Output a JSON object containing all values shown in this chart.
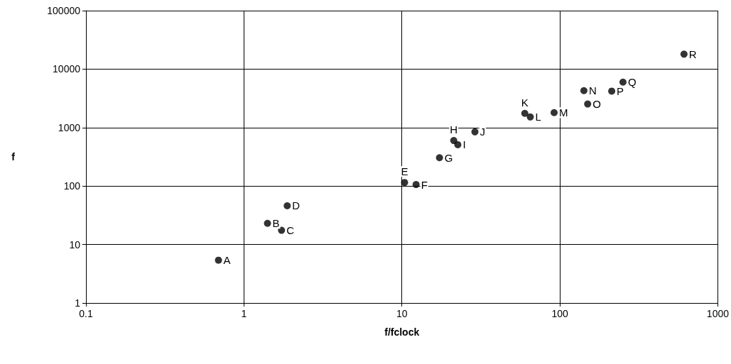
{
  "chart_data": {
    "type": "scatter",
    "xlabel": "f/fclock",
    "ylabel": "f",
    "log": "xy",
    "grid": true,
    "marker": "circle",
    "xlim": [
      0.1,
      1000
    ],
    "xticks": [
      0.1,
      1,
      10,
      100,
      1000
    ],
    "ylim": [
      1,
      100000
    ],
    "yticks": [
      1,
      10,
      100,
      1000,
      10000,
      100000
    ],
    "x": [
      0.69,
      1.41,
      1.73,
      1.88,
      10.4,
      12.3,
      17.3,
      21.3,
      22.6,
      29,
      60,
      65,
      92,
      142,
      150,
      213,
      251,
      611
    ],
    "series": [
      {
        "color": "#000000",
        "values": [
          5.4,
          23,
          17.5,
          46,
          115,
          106,
          305,
          600,
          510,
          845,
          1750,
          1520,
          1800,
          4280,
          2530,
          4200,
          5990,
          18000
        ]
      }
    ],
    "annotations": [
      {
        "text": "A",
        "x": 0.69,
        "y": 5.4
      },
      {
        "text": "B",
        "x": 1.41,
        "y": 23
      },
      {
        "text": "C",
        "x": 1.73,
        "y": 17.5
      },
      {
        "text": "D",
        "x": 1.88,
        "y": 46
      },
      {
        "text": "E",
        "x": 10.4,
        "y": 115
      },
      {
        "text": "F",
        "x": 12.3,
        "y": 106
      },
      {
        "text": "G",
        "x": 17.3,
        "y": 305
      },
      {
        "text": "H",
        "x": 21.3,
        "y": 600
      },
      {
        "text": "I",
        "x": 22.6,
        "y": 510
      },
      {
        "text": "J",
        "x": 29,
        "y": 845
      },
      {
        "text": "K",
        "x": 60,
        "y": 1750
      },
      {
        "text": "L",
        "x": 65,
        "y": 1520
      },
      {
        "text": "M",
        "x": 92,
        "y": 1800
      },
      {
        "text": "N",
        "x": 142,
        "y": 4280
      },
      {
        "text": "O",
        "x": 150,
        "y": 2530
      },
      {
        "text": "P",
        "x": 213,
        "y": 4200
      },
      {
        "text": "Q",
        "x": 251,
        "y": 5990
      },
      {
        "text": "R",
        "x": 611,
        "y": 18000
      }
    ]
  }
}
